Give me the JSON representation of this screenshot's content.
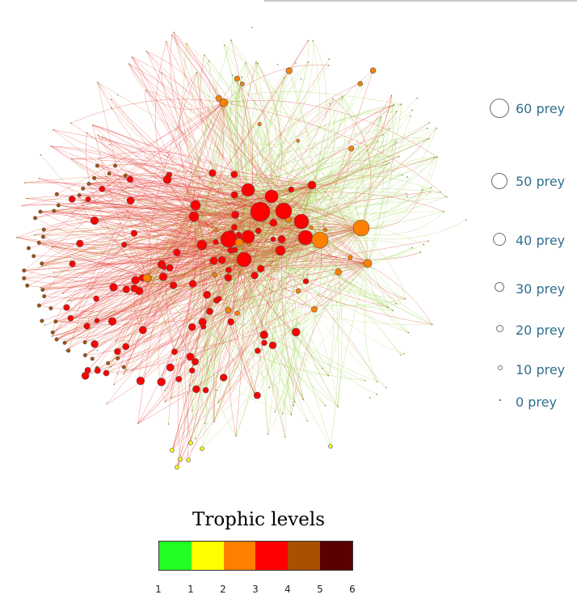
{
  "size_legend": {
    "items": [
      {
        "label": "60 prey",
        "count": 60
      },
      {
        "label": "50 prey",
        "count": 50
      },
      {
        "label": "40 prey",
        "count": 40
      },
      {
        "label": "30 prey",
        "count": 30
      },
      {
        "label": "20 prey",
        "count": 20
      },
      {
        "label": "10 prey",
        "count": 10
      },
      {
        "label": "0 prey",
        "count": 0
      }
    ]
  },
  "trophic_legend": {
    "title": "Trophic levels",
    "colors": [
      "#22ff22",
      "#ffff00",
      "#ff8000",
      "#ff0000",
      "#a85000",
      "#5a0000"
    ],
    "tick_labels": [
      "1",
      "1",
      "2",
      "3",
      "4",
      "5",
      "6"
    ]
  },
  "network": {
    "edge_colors": [
      "#9ad04a",
      "#b8d860",
      "#c87a30",
      "#e83030"
    ],
    "node_colors": {
      "level2": "#ff8000",
      "level3": "#ff0000",
      "level4": "#a85000",
      "level1": "#ffff00"
    }
  }
}
